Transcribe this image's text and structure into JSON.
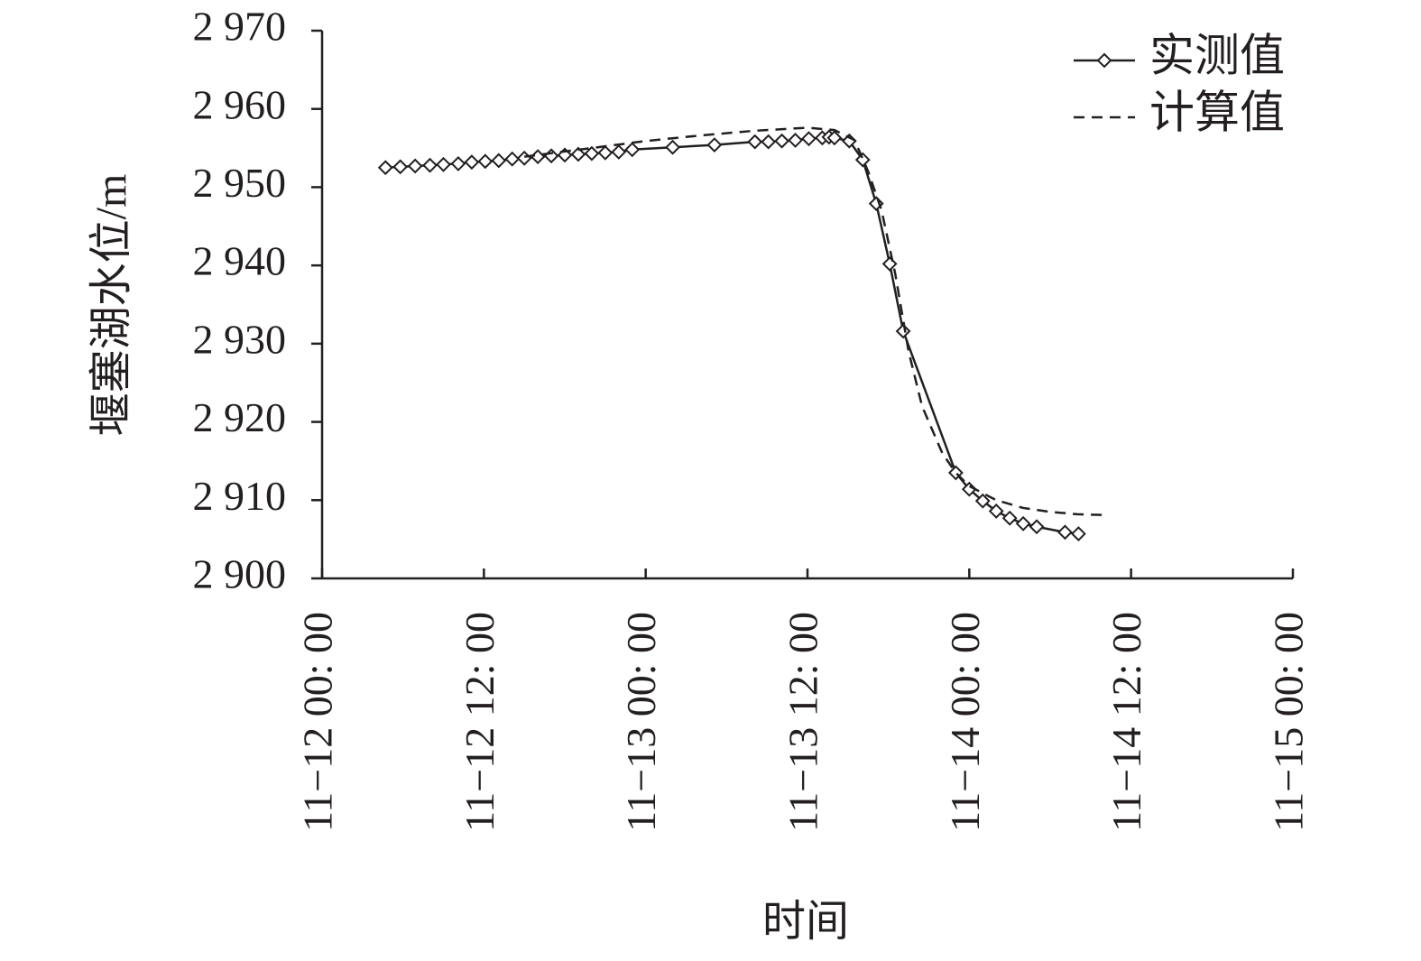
{
  "chart_data": {
    "type": "line",
    "x_label": "时间",
    "y_label": "堰塞湖水位/m",
    "xlim": [
      0,
      72
    ],
    "xticks": [
      {
        "value": 0,
        "label": "11−12 00: 00"
      },
      {
        "value": 12,
        "label": "11−12 12: 00"
      },
      {
        "value": 24,
        "label": "11−13 00: 00"
      },
      {
        "value": 36,
        "label": "11−13 12: 00"
      },
      {
        "value": 48,
        "label": "11−14 00: 00"
      },
      {
        "value": 60,
        "label": "11−14 12: 00"
      },
      {
        "value": 72,
        "label": "11−15 00: 00"
      }
    ],
    "ylim": [
      2900,
      2970
    ],
    "yticks": [
      {
        "value": 2900,
        "label": "2 900"
      },
      {
        "value": 2910,
        "label": "2 910"
      },
      {
        "value": 2920,
        "label": "2 920"
      },
      {
        "value": 2930,
        "label": "2 930"
      },
      {
        "value": 2940,
        "label": "2 940"
      },
      {
        "value": 2950,
        "label": "2 950"
      },
      {
        "value": 2960,
        "label": "2 960"
      },
      {
        "value": 2970,
        "label": "2 970"
      }
    ],
    "grid": false,
    "legend": "upper right",
    "series": [
      {
        "name": "实测值",
        "color": "#231f20",
        "line_style": "solid",
        "marker": "diamond",
        "x": [
          4.7,
          5.8,
          6.9,
          8.0,
          9.0,
          10.1,
          11.1,
          12.1,
          13.1,
          14.1,
          15.0,
          16.0,
          17.0,
          18.0,
          19.0,
          20.0,
          21.0,
          22.0,
          23.0,
          26.0,
          29.1,
          32.1,
          33.1,
          34.1,
          35.1,
          36.1,
          37.1,
          37.6,
          38.0,
          39.1,
          40.1,
          41.1,
          42.1,
          43.1,
          47.0,
          48.0,
          49.0,
          50.0,
          51.0,
          52.0,
          53.0,
          55.1,
          56.1
        ],
        "values": [
          2952.5,
          2952.6,
          2952.7,
          2952.8,
          2952.9,
          2953.0,
          2953.2,
          2953.3,
          2953.4,
          2953.6,
          2953.7,
          2953.9,
          2954.0,
          2954.1,
          2954.2,
          2954.3,
          2954.4,
          2954.5,
          2954.8,
          2955.1,
          2955.4,
          2955.8,
          2955.8,
          2955.9,
          2956.0,
          2956.2,
          2956.3,
          2956.4,
          2956.3,
          2955.9,
          2953.5,
          2947.9,
          2940.2,
          2931.6,
          2913.5,
          2911.4,
          2909.9,
          2908.6,
          2907.7,
          2907.0,
          2906.6,
          2905.9,
          2905.7
        ]
      },
      {
        "name": "计算值",
        "color": "#231f20",
        "line_style": "dashed",
        "marker": "none",
        "x": [
          15.0,
          20.0,
          24.0,
          28.0,
          32.0,
          36.0,
          38.0,
          39.5,
          40.5,
          41.5,
          42.5,
          43.5,
          44.5,
          46.0,
          47.0,
          48.0,
          50.0,
          52.0,
          54.0,
          56.0,
          58.0
        ],
        "values": [
          2953.9,
          2955.0,
          2955.9,
          2956.6,
          2957.2,
          2957.6,
          2957.3,
          2956.0,
          2952.0,
          2947.0,
          2939.0,
          2929.0,
          2922.0,
          2916.0,
          2913.5,
          2911.8,
          2910.0,
          2909.0,
          2908.5,
          2908.2,
          2908.1
        ]
      }
    ]
  }
}
